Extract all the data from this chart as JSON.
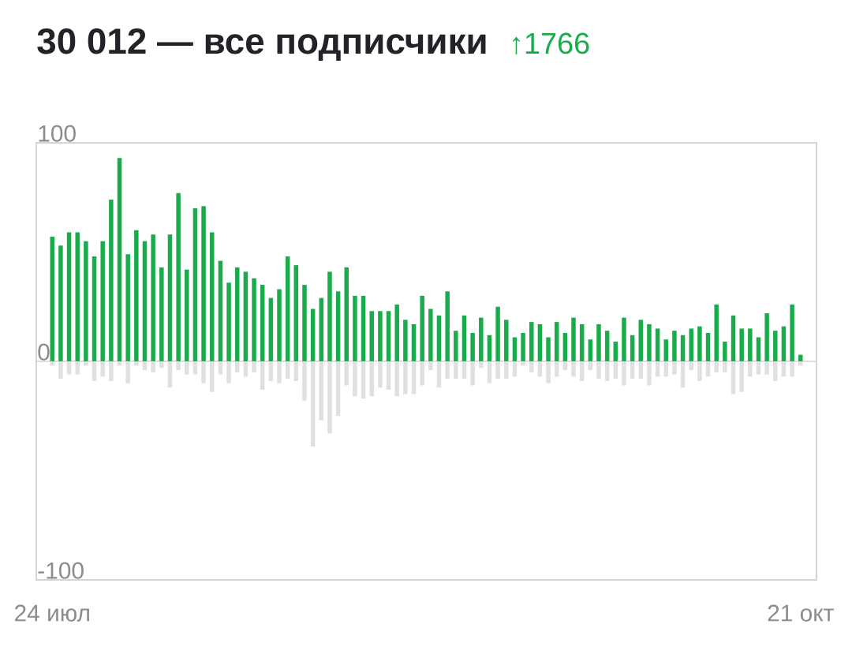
{
  "chart_data": {
    "type": "bar",
    "title": "30 012 — все подписчики",
    "subtitle": "↑1766",
    "categories": [
      "24 июл",
      null,
      null,
      null,
      null,
      null,
      null,
      null,
      null,
      null,
      null,
      null,
      null,
      null,
      null,
      null,
      null,
      null,
      null,
      null,
      null,
      null,
      null,
      null,
      null,
      null,
      null,
      null,
      null,
      null,
      null,
      null,
      null,
      null,
      null,
      null,
      null,
      null,
      null,
      null,
      null,
      null,
      null,
      null,
      null,
      null,
      null,
      null,
      null,
      null,
      null,
      null,
      null,
      null,
      null,
      null,
      null,
      null,
      null,
      null,
      null,
      null,
      null,
      null,
      null,
      null,
      null,
      null,
      null,
      null,
      null,
      null,
      null,
      null,
      null,
      null,
      null,
      null,
      null,
      null,
      null,
      null,
      null,
      null,
      null,
      null,
      null,
      null,
      null,
      "21 окт"
    ],
    "series": [
      {
        "color": "#1aab4b",
        "values": [
          57,
          53,
          59,
          59,
          55,
          48,
          55,
          74,
          93,
          49,
          60,
          55,
          58,
          43,
          58,
          77,
          42,
          70,
          71,
          59,
          46,
          36,
          43,
          41,
          38,
          35,
          29,
          33,
          48,
          44,
          35,
          24,
          29,
          41,
          32,
          43,
          30,
          30,
          23,
          23,
          23,
          26,
          19,
          17,
          30,
          24,
          21,
          32,
          14,
          21,
          13,
          20,
          12,
          25,
          19,
          11,
          13,
          18,
          17,
          11,
          18,
          13,
          20,
          17,
          10,
          17,
          14,
          9,
          20,
          12,
          19,
          17,
          15,
          10,
          14,
          12,
          15,
          16,
          13,
          26,
          9,
          21,
          15,
          15,
          11,
          22,
          14,
          16,
          26,
          3
        ]
      },
      {
        "color": "#e0e0e0",
        "values": [
          -2,
          -8,
          -6,
          -6,
          -2,
          -9,
          -7,
          -9,
          -2,
          -10,
          -2,
          -4,
          -5,
          -3,
          -12,
          -4,
          -6,
          -6,
          -10,
          -14,
          -6,
          -10,
          -5,
          -7,
          -5,
          -13,
          -9,
          -10,
          -8,
          -9,
          -18,
          -39,
          -27,
          -33,
          -25,
          -11,
          -16,
          -17,
          -16,
          -12,
          -13,
          -16,
          -15,
          -15,
          -11,
          -4,
          -12,
          -8,
          -8,
          -8,
          -11,
          -3,
          -10,
          -8,
          -8,
          -7,
          -2,
          -5,
          -7,
          -10,
          -7,
          -4,
          -7,
          -9,
          -4,
          -8,
          -9,
          -8,
          -11,
          -8,
          -8,
          -11,
          -7,
          -7,
          -6,
          -12,
          -4,
          -9,
          -7,
          -5,
          -5,
          -15,
          -14,
          -7,
          -6,
          -6,
          -9,
          -7,
          -7,
          -2
        ]
      }
    ],
    "ylim": [
      -100,
      100
    ],
    "yticks": [
      -100,
      0,
      100
    ],
    "grid": "y",
    "stacked": true
  }
}
